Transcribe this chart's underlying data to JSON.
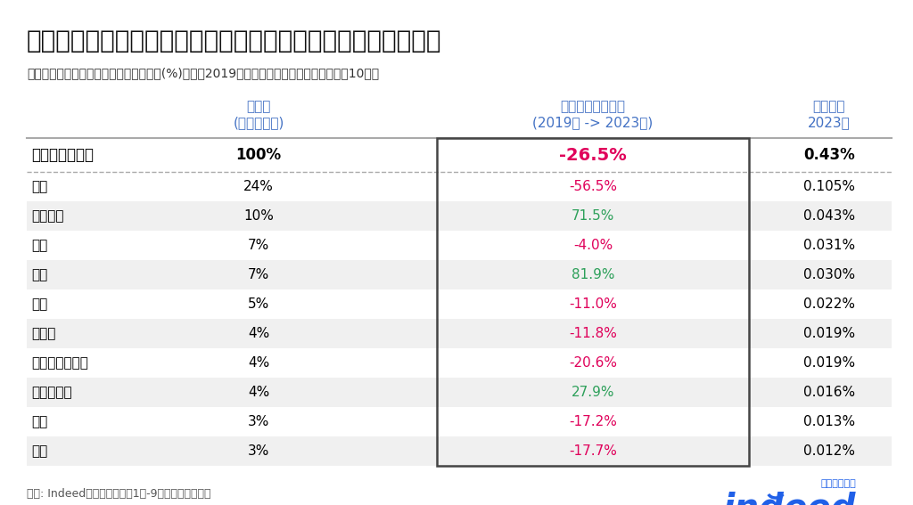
{
  "title": "国外から日本への関心低下は米国出身者の関心低下によるもの",
  "subtitle": "日本の全検索に占める出身国別検索割合(%)および2019年からの成長率、国内を除く上位10カ国",
  "header_row": [
    "国外出身国全て",
    "100%",
    "-26.5%",
    "0.43%"
  ],
  "rows": [
    [
      "米国",
      "24%",
      "-56.5%",
      "0.105%"
    ],
    [
      "ベトナム",
      "10%",
      "71.5%",
      "0.043%"
    ],
    [
      "韓国",
      "7%",
      "-4.0%",
      "0.031%"
    ],
    [
      "中国",
      "7%",
      "81.9%",
      "0.030%"
    ],
    [
      "台湾",
      "5%",
      "-11.0%",
      "0.022%"
    ],
    [
      "カナダ",
      "4%",
      "-11.8%",
      "0.019%"
    ],
    [
      "オーストラリア",
      "4%",
      "-20.6%",
      "0.019%"
    ],
    [
      "フィリピン",
      "4%",
      "27.9%",
      "0.016%"
    ],
    [
      "タイ",
      "3%",
      "-17.2%",
      "0.013%"
    ],
    [
      "香港",
      "3%",
      "-17.7%",
      "0.012%"
    ]
  ],
  "growth_colors": [
    "#e0005a",
    "#2da05a",
    "#e0005a",
    "#2da05a",
    "#e0005a",
    "#e0005a",
    "#e0005a",
    "#2da05a",
    "#e0005a",
    "#e0005a"
  ],
  "header_growth_color": "#e0005a",
  "col_header_color": "#4472c4",
  "title_color": "#111111",
  "subtitle_color": "#333333",
  "bg_color": "#ffffff",
  "row_alt_color": "#f0f0f0",
  "row_base_color": "#ffffff",
  "border_color": "#aaaaaa",
  "box_border_color": "#444444",
  "footer": "出所: Indeed。データは各年1月-9月の期間を使用。",
  "indeed_blue": "#2060e8"
}
